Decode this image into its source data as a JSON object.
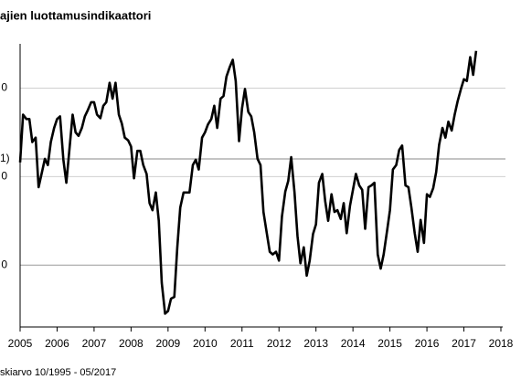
{
  "chart_data": {
    "type": "line",
    "title": "ajien luottamusindikaattori",
    "footnote": "skiarvo 10/1995 - 05/2017",
    "reference_line": {
      "value": 12,
      "label": "1)"
    },
    "xlim": [
      2005,
      2018
    ],
    "xticks": [
      2005,
      2006,
      2007,
      2008,
      2009,
      2010,
      2011,
      2012,
      2013,
      2014,
      2015,
      2016,
      2017,
      2018
    ],
    "ylim": [
      -7,
      25
    ],
    "yticks": [
      {
        "value": 0,
        "label": "0"
      },
      {
        "value": 10,
        "label": "0"
      },
      {
        "value": 20,
        "label": "0"
      }
    ],
    "grid": true,
    "series": [
      {
        "color": "#000000",
        "x": [
          2005,
          2005.08,
          2005.17,
          2005.25,
          2005.33,
          2005.42,
          2005.5,
          2005.58,
          2005.67,
          2005.75,
          2005.83,
          2005.92,
          2006,
          2006.08,
          2006.17,
          2006.25,
          2006.33,
          2006.42,
          2006.5,
          2006.58,
          2006.67,
          2006.75,
          2006.83,
          2006.92,
          2007,
          2007.08,
          2007.17,
          2007.25,
          2007.33,
          2007.42,
          2007.5,
          2007.58,
          2007.67,
          2007.75,
          2007.83,
          2007.92,
          2008,
          2008.08,
          2008.17,
          2008.25,
          2008.33,
          2008.42,
          2008.5,
          2008.58,
          2008.67,
          2008.75,
          2008.83,
          2008.92,
          2009,
          2009.08,
          2009.17,
          2009.25,
          2009.33,
          2009.42,
          2009.5,
          2009.58,
          2009.67,
          2009.75,
          2009.83,
          2009.92,
          2010,
          2010.08,
          2010.17,
          2010.25,
          2010.33,
          2010.42,
          2010.5,
          2010.58,
          2010.67,
          2010.75,
          2010.83,
          2010.92,
          2011,
          2011.08,
          2011.17,
          2011.25,
          2011.33,
          2011.42,
          2011.5,
          2011.58,
          2011.67,
          2011.75,
          2011.83,
          2011.92,
          2012,
          2012.08,
          2012.17,
          2012.25,
          2012.33,
          2012.42,
          2012.5,
          2012.58,
          2012.67,
          2012.75,
          2012.83,
          2012.92,
          2013,
          2013.08,
          2013.17,
          2013.25,
          2013.33,
          2013.42,
          2013.5,
          2013.58,
          2013.67,
          2013.75,
          2013.83,
          2013.92,
          2014,
          2014.08,
          2014.17,
          2014.25,
          2014.33,
          2014.42,
          2014.5,
          2014.58,
          2014.67,
          2014.75,
          2014.83,
          2014.92,
          2015,
          2015.08,
          2015.17,
          2015.25,
          2015.33,
          2015.42,
          2015.5,
          2015.58,
          2015.67,
          2015.75,
          2015.83,
          2015.92,
          2016,
          2016.08,
          2016.17,
          2016.25,
          2016.33,
          2016.42,
          2016.5,
          2016.58,
          2016.67,
          2016.75,
          2016.83,
          2016.92,
          2017,
          2017.08,
          2017.17,
          2017.25,
          2017.33
        ],
        "values": [
          11.6,
          17,
          16.5,
          16.5,
          13.9,
          14.4,
          8.8,
          10.3,
          12,
          11.3,
          13.9,
          15.5,
          16.5,
          16.8,
          11.9,
          9.3,
          12.9,
          17,
          15,
          14.6,
          15.5,
          16.8,
          17.5,
          18.4,
          18.4,
          17,
          16.6,
          18,
          18.4,
          20.6,
          18.8,
          20.6,
          17,
          16,
          14.4,
          14.1,
          13.4,
          9.8,
          12.9,
          12.9,
          11.3,
          10.3,
          7,
          6.2,
          8.2,
          5,
          -2,
          -5.5,
          -5.2,
          -3.8,
          -3.6,
          2,
          6.5,
          8.2,
          8.2,
          8.2,
          11.3,
          11.9,
          10.8,
          14.4,
          15,
          15.9,
          16.5,
          18,
          15.5,
          18.8,
          19.1,
          21.3,
          22.4,
          23.2,
          20.8,
          14,
          17.7,
          19.9,
          17.3,
          16.8,
          15,
          12,
          11.3,
          6,
          3.6,
          1.5,
          1.2,
          1.5,
          0.5,
          5.5,
          8.3,
          9.5,
          12.2,
          8.2,
          3.3,
          0.2,
          2,
          -1.2,
          0.5,
          3.5,
          4.6,
          9.3,
          10.3,
          7.2,
          5,
          8,
          6,
          6.2,
          5.2,
          7,
          3.6,
          6.7,
          8.5,
          10.3,
          9,
          8.5,
          4.1,
          8.8,
          9,
          9.3,
          1.2,
          -0.4,
          1.2,
          3.8,
          6.2,
          10.8,
          11.3,
          13,
          13.5,
          9,
          8.8,
          6.5,
          3.6,
          1.5,
          5.1,
          2.5,
          8,
          7.7,
          8.7,
          10.5,
          13.6,
          15.5,
          14.4,
          16.2,
          15.2,
          17,
          18.5,
          19.9,
          21,
          20.8,
          23.5,
          21.5,
          24.2
        ]
      }
    ]
  }
}
